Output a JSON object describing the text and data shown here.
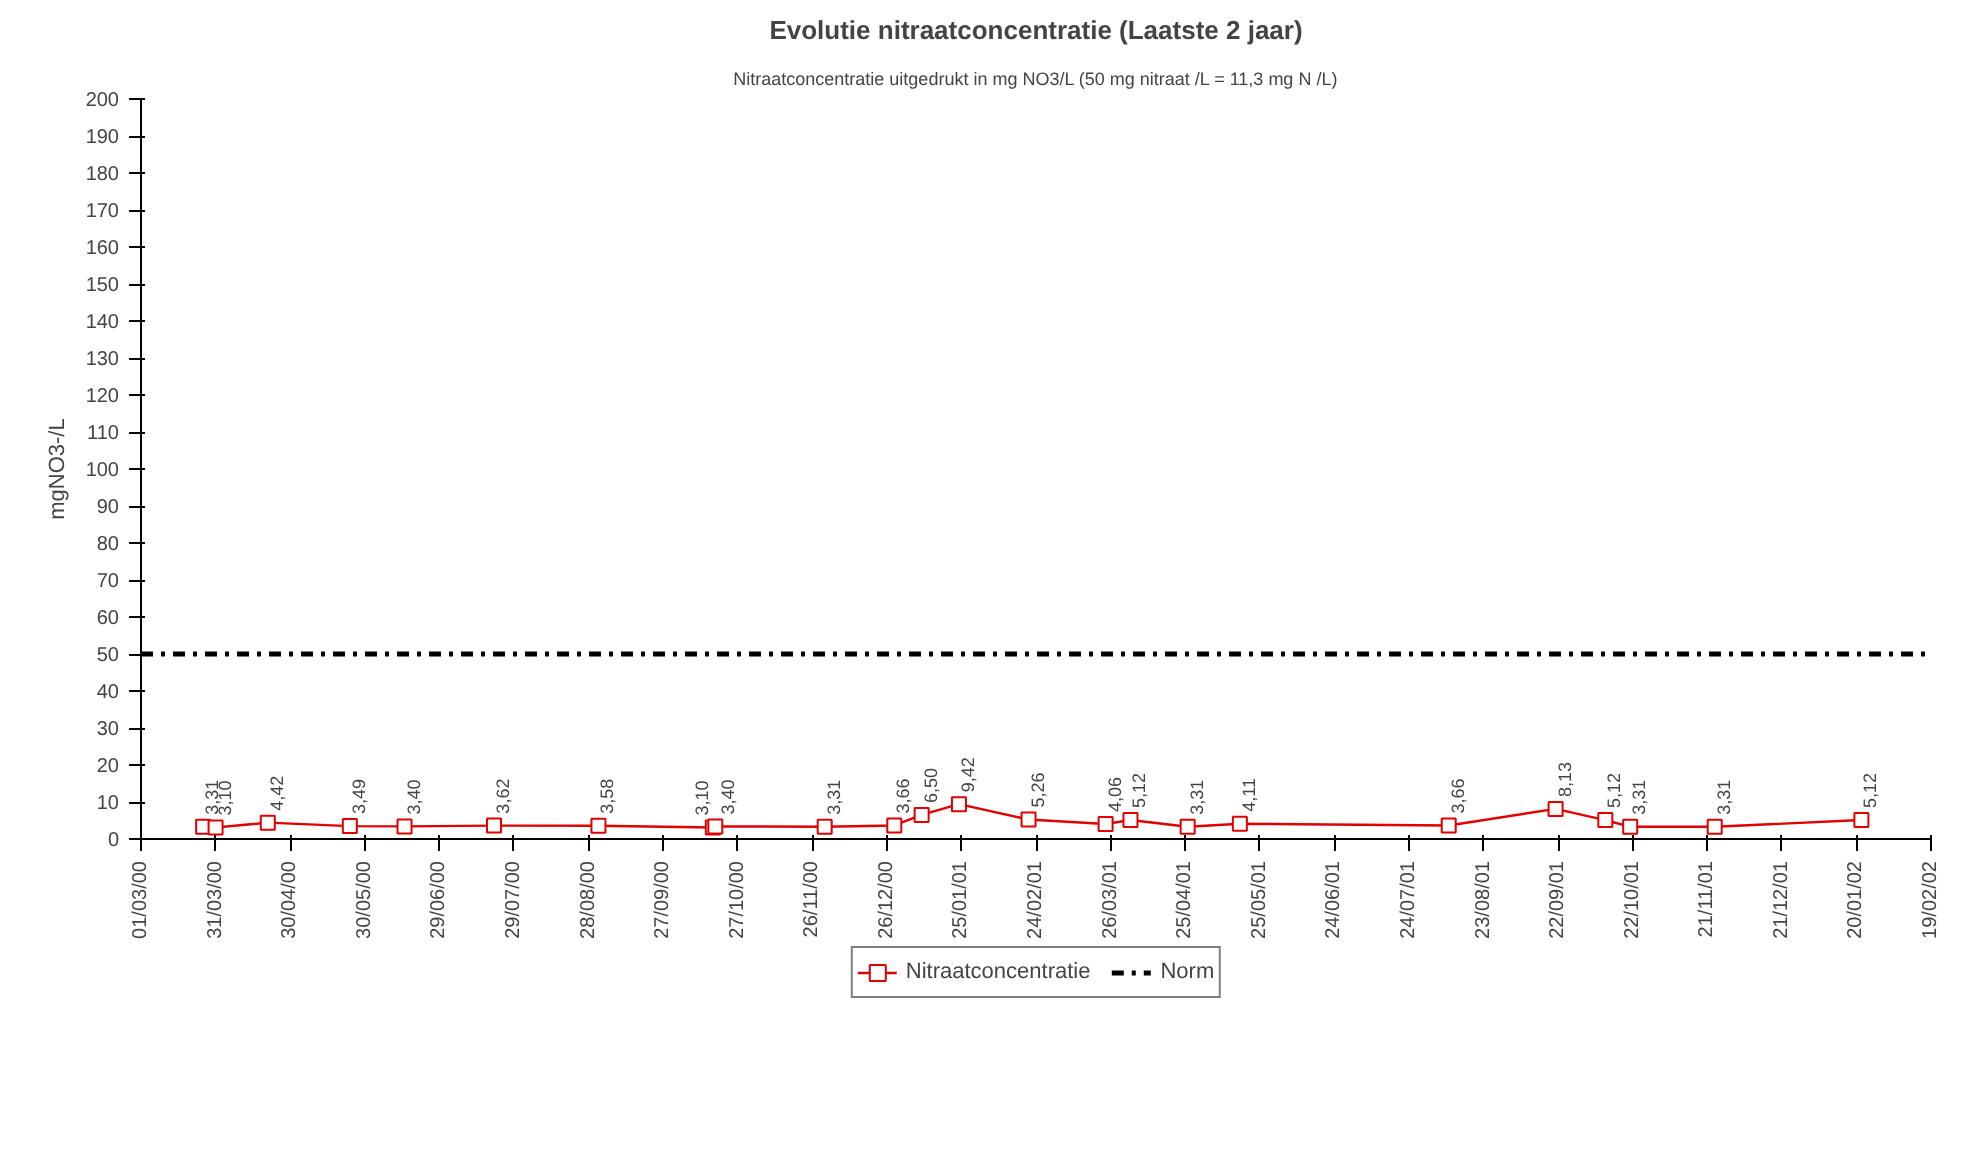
{
  "chart_data": {
    "type": "line",
    "title": "Evolutie nitraatconcentratie (Laatste 2 jaar)",
    "subtitle": "Nitraatconcentratie uitgedrukt in mg NO3/L (50 mg nitraat /L = 11,3 mg N /L)",
    "ylabel": "mgNO3-/L",
    "x": [
      "2000-03-26",
      "2000-03-31",
      "2000-04-21",
      "2000-05-24",
      "2000-06-15",
      "2000-07-21",
      "2000-09-01",
      "2000-10-17",
      "2000-10-18",
      "2000-12-01",
      "2000-12-29",
      "2001-01-09",
      "2001-01-24",
      "2001-02-21",
      "2001-03-24",
      "2001-04-03",
      "2001-04-26",
      "2001-05-17",
      "2001-08-09",
      "2001-09-21",
      "2001-10-11",
      "2001-10-21",
      "2001-11-24",
      "2002-01-22"
    ],
    "series": [
      {
        "name": "Nitraatconcentratie",
        "color": "#e00000",
        "values": [
          3.31,
          3.1,
          4.42,
          3.49,
          3.4,
          3.62,
          3.58,
          3.1,
          3.4,
          3.31,
          3.66,
          6.5,
          9.42,
          5.26,
          4.06,
          5.12,
          3.31,
          4.11,
          3.66,
          8.13,
          5.12,
          3.31,
          3.31,
          5.12
        ],
        "value_labels": [
          "3,31",
          "3,10",
          "4,42",
          "3,49",
          "3,40",
          "3,62",
          "3,58",
          "3,10",
          "3,40",
          "3,31",
          "3,66",
          "6,50",
          "9,42",
          "5,26",
          "4,06",
          "5,12",
          "3,31",
          "4,11",
          "3,66",
          "8,13",
          "5,12",
          "3,31",
          "3,31",
          "5,12"
        ]
      }
    ],
    "marker": "square",
    "line_style": "solid",
    "ref_lines": [
      {
        "axis": "y",
        "value": 50,
        "label": "Norm",
        "color": "#000000",
        "line_style": "dashdot"
      }
    ],
    "xlim": [
      "2000-03-01",
      "2002-02-19"
    ],
    "xticks": [
      {
        "value": "2000-03-01",
        "label": "01/03/00"
      },
      {
        "value": "2000-03-31",
        "label": "31/03/00"
      },
      {
        "value": "2000-04-30",
        "label": "30/04/00"
      },
      {
        "value": "2000-05-30",
        "label": "30/05/00"
      },
      {
        "value": "2000-06-29",
        "label": "29/06/00"
      },
      {
        "value": "2000-07-29",
        "label": "29/07/00"
      },
      {
        "value": "2000-08-28",
        "label": "28/08/00"
      },
      {
        "value": "2000-09-27",
        "label": "27/09/00"
      },
      {
        "value": "2000-10-27",
        "label": "27/10/00"
      },
      {
        "value": "2000-11-26",
        "label": "26/11/00"
      },
      {
        "value": "2000-12-26",
        "label": "26/12/00"
      },
      {
        "value": "2001-01-25",
        "label": "25/01/01"
      },
      {
        "value": "2001-02-24",
        "label": "24/02/01"
      },
      {
        "value": "2001-03-26",
        "label": "26/03/01"
      },
      {
        "value": "2001-04-25",
        "label": "25/04/01"
      },
      {
        "value": "2001-05-25",
        "label": "25/05/01"
      },
      {
        "value": "2001-06-24",
        "label": "24/06/01"
      },
      {
        "value": "2001-07-24",
        "label": "24/07/01"
      },
      {
        "value": "2001-08-23",
        "label": "23/08/01"
      },
      {
        "value": "2001-09-22",
        "label": "22/09/01"
      },
      {
        "value": "2001-10-22",
        "label": "22/10/01"
      },
      {
        "value": "2001-11-21",
        "label": "21/11/01"
      },
      {
        "value": "2001-12-21",
        "label": "21/12/01"
      },
      {
        "value": "2002-01-20",
        "label": "20/01/02"
      },
      {
        "value": "2002-02-19",
        "label": "19/02/02"
      }
    ],
    "ylim": [
      0,
      200
    ],
    "yticks": [
      0,
      10,
      20,
      30,
      40,
      50,
      60,
      70,
      80,
      90,
      100,
      110,
      120,
      130,
      140,
      150,
      160,
      170,
      180,
      190,
      200
    ],
    "grid": false,
    "legend": "bottom"
  }
}
